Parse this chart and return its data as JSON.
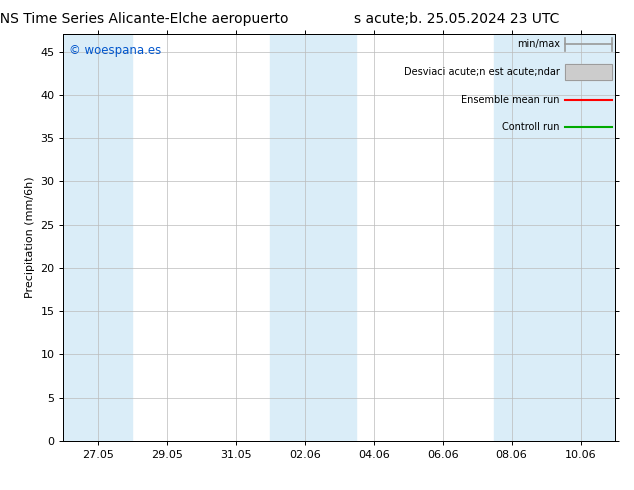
{
  "title": "ENS Time Series Alicante-Elche aeropuerto",
  "subtitle": "s acute;b. 25.05.2024 23 UTC",
  "ylabel": "Precipitation (mm/6h)",
  "ylim": [
    0,
    47
  ],
  "yticks": [
    0,
    5,
    10,
    15,
    20,
    25,
    30,
    35,
    40,
    45
  ],
  "xtick_labels": [
    "27.05",
    "29.05",
    "31.05",
    "02.06",
    "04.06",
    "06.06",
    "08.06",
    "10.06"
  ],
  "background_color": "#ffffff",
  "plot_bg_color": "#ffffff",
  "grid_color": "#bbbbbb",
  "band_color": "#daedf8",
  "shaded_band_centers": [
    27.05,
    2.06,
    9.0
  ],
  "watermark_text": "woespana.es",
  "watermark_color": "#0055cc",
  "title_fontsize": 10,
  "axis_fontsize": 8,
  "tick_fontsize": 8,
  "legend_line1": "min/max",
  "legend_line2": "Desviaci acute;n est acute;ndar",
  "legend_line3": "Ensemble mean run",
  "legend_line4": "Controll run"
}
